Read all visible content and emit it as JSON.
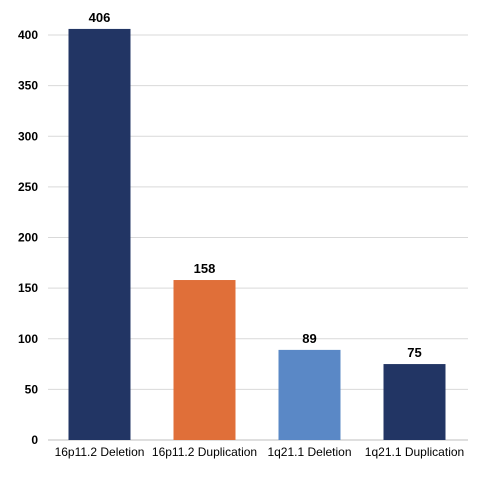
{
  "chart_data": {
    "type": "bar",
    "categories": [
      "16p11.2 Deletion",
      "16p11.2 Duplication",
      "1q21.1 Deletion",
      "1q21.1 Duplication"
    ],
    "values": [
      406,
      158,
      89,
      75
    ],
    "bar_colors": [
      "#223564",
      "#e06f39",
      "#5a88c6",
      "#223564"
    ],
    "ylim": [
      0,
      400
    ],
    "yticks": [
      0,
      50,
      100,
      150,
      200,
      250,
      300,
      350,
      400
    ],
    "grid": true,
    "legend": "none",
    "title": "",
    "xlabel": "",
    "ylabel": ""
  }
}
